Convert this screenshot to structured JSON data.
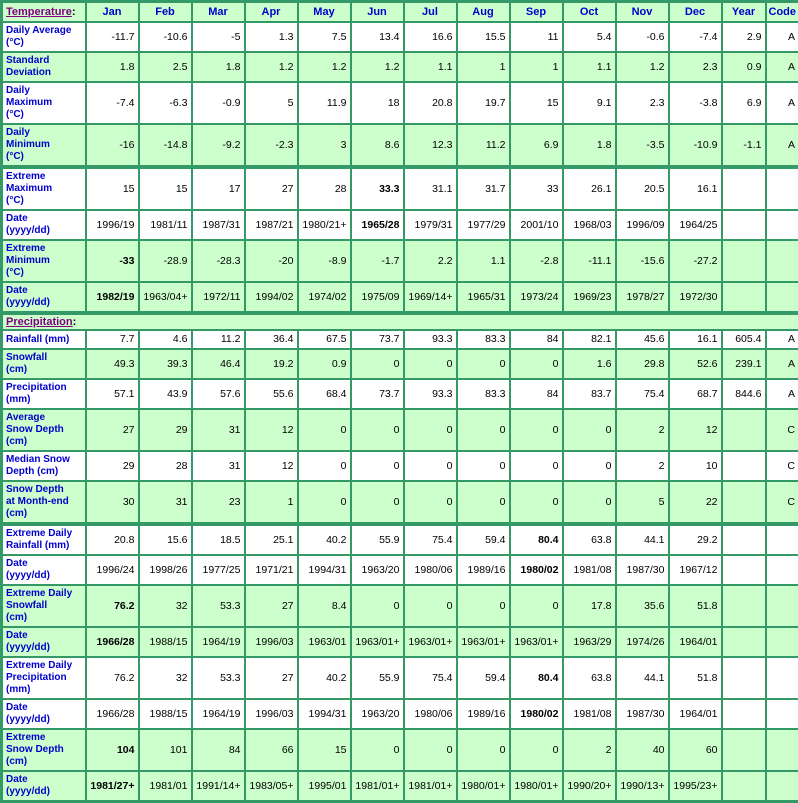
{
  "colors": {
    "border_green": "#339966",
    "row_green": "#ccffcc",
    "row_white": "#ffffff",
    "label_blue": "#0000cc",
    "link_purple": "#800080",
    "value_black": "#000000"
  },
  "header": {
    "temperature_link": "Temperature",
    "colon": ":",
    "months": [
      "Jan",
      "Feb",
      "Mar",
      "Apr",
      "May",
      "Jun",
      "Jul",
      "Aug",
      "Sep",
      "Oct",
      "Nov",
      "Dec"
    ],
    "year": "Year",
    "code": "Code"
  },
  "divider": {
    "precipitation_link": "Precipitation",
    "colon": ":"
  },
  "temperature_rows": [
    {
      "name": "daily-average",
      "label_lines": [
        "Daily Average",
        "(°C)"
      ],
      "shade": "white",
      "thick_top": false,
      "bold": [],
      "values": [
        "-11.7",
        "-10.6",
        "-5",
        "1.3",
        "7.5",
        "13.4",
        "16.6",
        "15.5",
        "11",
        "5.4",
        "-0.6",
        "-7.4"
      ],
      "year": "2.9",
      "code": "A"
    },
    {
      "name": "standard-deviation",
      "label_lines": [
        "Standard",
        "Deviation"
      ],
      "shade": "green",
      "thick_top": false,
      "bold": [],
      "values": [
        "1.8",
        "2.5",
        "1.8",
        "1.2",
        "1.2",
        "1.2",
        "1.1",
        "1",
        "1",
        "1.1",
        "1.2",
        "2.3"
      ],
      "year": "0.9",
      "code": "A"
    },
    {
      "name": "daily-maximum",
      "label_lines": [
        "Daily",
        "Maximum",
        "(°C)"
      ],
      "shade": "white",
      "thick_top": false,
      "bold": [],
      "values": [
        "-7.4",
        "-6.3",
        "-0.9",
        "5",
        "11.9",
        "18",
        "20.8",
        "19.7",
        "15",
        "9.1",
        "2.3",
        "-3.8"
      ],
      "year": "6.9",
      "code": "A"
    },
    {
      "name": "daily-minimum",
      "label_lines": [
        "Daily",
        "Minimum",
        "(°C)"
      ],
      "shade": "green",
      "thick_top": false,
      "bold": [],
      "values": [
        "-16",
        "-14.8",
        "-9.2",
        "-2.3",
        "3",
        "8.6",
        "12.3",
        "11.2",
        "6.9",
        "1.8",
        "-3.5",
        "-10.9"
      ],
      "year": "-1.1",
      "code": "A"
    },
    {
      "name": "extreme-maximum",
      "label_lines": [
        "Extreme",
        "Maximum",
        "(°C)"
      ],
      "shade": "white",
      "thick_top": true,
      "bold": [
        5
      ],
      "values": [
        "15",
        "15",
        "17",
        "27",
        "28",
        "33.3",
        "31.1",
        "31.7",
        "33",
        "26.1",
        "20.5",
        "16.1"
      ],
      "year": "",
      "code": ""
    },
    {
      "name": "extreme-maximum-date",
      "label_lines": [
        "Date",
        "(yyyy/dd)"
      ],
      "shade": "white",
      "thick_top": false,
      "bold": [
        5
      ],
      "values": [
        "1996/19",
        "1981/11",
        "1987/31",
        "1987/21",
        "1980/21+",
        "1965/28",
        "1979/31",
        "1977/29",
        "2001/10",
        "1968/03",
        "1996/09",
        "1964/25"
      ],
      "year": "",
      "code": ""
    },
    {
      "name": "extreme-minimum",
      "label_lines": [
        "Extreme",
        "Minimum",
        "(°C)"
      ],
      "shade": "green",
      "thick_top": false,
      "bold": [
        0
      ],
      "values": [
        "-33",
        "-28.9",
        "-28.3",
        "-20",
        "-8.9",
        "-1.7",
        "2.2",
        "1.1",
        "-2.8",
        "-11.1",
        "-15.6",
        "-27.2"
      ],
      "year": "",
      "code": ""
    },
    {
      "name": "extreme-minimum-date",
      "label_lines": [
        "Date",
        "(yyyy/dd)"
      ],
      "shade": "green",
      "thick_top": false,
      "bold": [
        0
      ],
      "values": [
        "1982/19",
        "1963/04+",
        "1972/11",
        "1994/02",
        "1974/02",
        "1975/09",
        "1969/14+",
        "1965/31",
        "1973/24",
        "1969/23",
        "1978/27",
        "1972/30"
      ],
      "year": "",
      "code": ""
    }
  ],
  "precipitation_rows": [
    {
      "name": "rainfall",
      "label_lines": [
        "Rainfall (mm)"
      ],
      "shade": "white",
      "thick_top": false,
      "bold": [],
      "values": [
        "7.7",
        "4.6",
        "11.2",
        "36.4",
        "67.5",
        "73.7",
        "93.3",
        "83.3",
        "84",
        "82.1",
        "45.6",
        "16.1"
      ],
      "year": "605.4",
      "code": "A"
    },
    {
      "name": "snowfall",
      "label_lines": [
        "Snowfall",
        "(cm)"
      ],
      "shade": "green",
      "thick_top": false,
      "bold": [],
      "values": [
        "49.3",
        "39.3",
        "46.4",
        "19.2",
        "0.9",
        "0",
        "0",
        "0",
        "0",
        "1.6",
        "29.8",
        "52.6"
      ],
      "year": "239.1",
      "code": "A"
    },
    {
      "name": "precipitation",
      "label_lines": [
        "Precipitation",
        "(mm)"
      ],
      "shade": "white",
      "thick_top": false,
      "bold": [],
      "values": [
        "57.1",
        "43.9",
        "57.6",
        "55.6",
        "68.4",
        "73.7",
        "93.3",
        "83.3",
        "84",
        "83.7",
        "75.4",
        "68.7"
      ],
      "year": "844.6",
      "code": "A"
    },
    {
      "name": "average-snow-depth",
      "label_lines": [
        "Average",
        "Snow Depth",
        "(cm)"
      ],
      "shade": "green",
      "thick_top": false,
      "bold": [],
      "values": [
        "27",
        "29",
        "31",
        "12",
        "0",
        "0",
        "0",
        "0",
        "0",
        "0",
        "2",
        "12"
      ],
      "year": "",
      "code": "C"
    },
    {
      "name": "median-snow-depth",
      "label_lines": [
        "Median Snow",
        "Depth (cm)"
      ],
      "shade": "white",
      "thick_top": false,
      "bold": [],
      "values": [
        "29",
        "28",
        "31",
        "12",
        "0",
        "0",
        "0",
        "0",
        "0",
        "0",
        "2",
        "10"
      ],
      "year": "",
      "code": "C"
    },
    {
      "name": "snow-depth-month-end",
      "label_lines": [
        "Snow Depth",
        "at Month-end",
        "(cm)"
      ],
      "shade": "green",
      "thick_top": false,
      "bold": [],
      "values": [
        "30",
        "31",
        "23",
        "1",
        "0",
        "0",
        "0",
        "0",
        "0",
        "0",
        "5",
        "22"
      ],
      "year": "",
      "code": "C"
    },
    {
      "name": "extreme-daily-rainfall",
      "label_lines": [
        "Extreme Daily",
        "Rainfall (mm)"
      ],
      "shade": "white",
      "thick_top": true,
      "bold": [
        8
      ],
      "values": [
        "20.8",
        "15.6",
        "18.5",
        "25.1",
        "40.2",
        "55.9",
        "75.4",
        "59.4",
        "80.4",
        "63.8",
        "44.1",
        "29.2"
      ],
      "year": "",
      "code": ""
    },
    {
      "name": "extreme-daily-rainfall-date",
      "label_lines": [
        "Date",
        "(yyyy/dd)"
      ],
      "shade": "white",
      "thick_top": false,
      "bold": [
        8
      ],
      "values": [
        "1996/24",
        "1998/26",
        "1977/25",
        "1971/21",
        "1994/31",
        "1963/20",
        "1980/06",
        "1989/16",
        "1980/02",
        "1981/08",
        "1987/30",
        "1967/12"
      ],
      "year": "",
      "code": ""
    },
    {
      "name": "extreme-daily-snowfall",
      "label_lines": [
        "Extreme Daily",
        "Snowfall",
        "(cm)"
      ],
      "shade": "green",
      "thick_top": false,
      "bold": [
        0
      ],
      "values": [
        "76.2",
        "32",
        "53.3",
        "27",
        "8.4",
        "0",
        "0",
        "0",
        "0",
        "17.8",
        "35.6",
        "51.8"
      ],
      "year": "",
      "code": ""
    },
    {
      "name": "extreme-daily-snowfall-date",
      "label_lines": [
        "Date",
        "(yyyy/dd)"
      ],
      "shade": "green",
      "thick_top": false,
      "bold": [
        0
      ],
      "values": [
        "1966/28",
        "1988/15",
        "1964/19",
        "1996/03",
        "1963/01",
        "1963/01+",
        "1963/01+",
        "1963/01+",
        "1963/01+",
        "1963/29",
        "1974/26",
        "1964/01"
      ],
      "year": "",
      "code": ""
    },
    {
      "name": "extreme-daily-precipitation",
      "label_lines": [
        "Extreme Daily",
        "Precipitation",
        "(mm)"
      ],
      "shade": "white",
      "thick_top": false,
      "bold": [
        8
      ],
      "values": [
        "76.2",
        "32",
        "53.3",
        "27",
        "40.2",
        "55.9",
        "75.4",
        "59.4",
        "80.4",
        "63.8",
        "44.1",
        "51.8"
      ],
      "year": "",
      "code": ""
    },
    {
      "name": "extreme-daily-precipitation-date",
      "label_lines": [
        "Date",
        "(yyyy/dd)"
      ],
      "shade": "white",
      "thick_top": false,
      "bold": [
        8
      ],
      "values": [
        "1966/28",
        "1988/15",
        "1964/19",
        "1996/03",
        "1994/31",
        "1963/20",
        "1980/06",
        "1989/16",
        "1980/02",
        "1981/08",
        "1987/30",
        "1964/01"
      ],
      "year": "",
      "code": ""
    },
    {
      "name": "extreme-snow-depth",
      "label_lines": [
        "Extreme",
        "Snow Depth",
        "(cm)"
      ],
      "shade": "green",
      "thick_top": false,
      "bold": [
        0
      ],
      "values": [
        "104",
        "101",
        "84",
        "66",
        "15",
        "0",
        "0",
        "0",
        "0",
        "2",
        "40",
        "60"
      ],
      "year": "",
      "code": ""
    },
    {
      "name": "extreme-snow-depth-date",
      "label_lines": [
        "Date",
        "(yyyy/dd)"
      ],
      "shade": "green",
      "thick_top": false,
      "bold": [
        0
      ],
      "values": [
        "1981/27+",
        "1981/01",
        "1991/14+",
        "1983/05+",
        "1995/01",
        "1981/01+",
        "1981/01+",
        "1980/01+",
        "1980/01+",
        "1990/20+",
        "1990/13+",
        "1995/23+"
      ],
      "year": "",
      "code": ""
    }
  ]
}
